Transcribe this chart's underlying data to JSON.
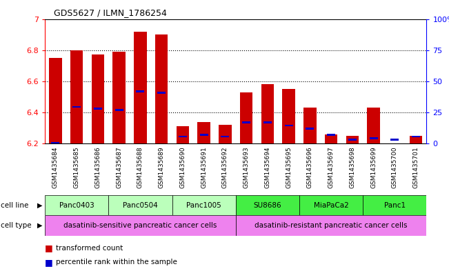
{
  "title": "GDS5627 / ILMN_1786254",
  "samples": [
    "GSM1435684",
    "GSM1435685",
    "GSM1435686",
    "GSM1435687",
    "GSM1435688",
    "GSM1435689",
    "GSM1435690",
    "GSM1435691",
    "GSM1435692",
    "GSM1435693",
    "GSM1435694",
    "GSM1435695",
    "GSM1435696",
    "GSM1435697",
    "GSM1435698",
    "GSM1435699",
    "GSM1435700",
    "GSM1435701"
  ],
  "transformed_count": [
    6.75,
    6.8,
    6.77,
    6.79,
    6.92,
    6.9,
    6.31,
    6.34,
    6.32,
    6.53,
    6.58,
    6.55,
    6.43,
    6.26,
    6.25,
    6.43,
    6.2,
    6.25
  ],
  "percentile_rank": [
    6.2,
    6.43,
    6.42,
    6.41,
    6.53,
    6.52,
    6.24,
    6.25,
    6.24,
    6.33,
    6.33,
    6.31,
    6.29,
    6.25,
    6.22,
    6.23,
    6.22,
    6.24
  ],
  "cell_lines": [
    {
      "name": "Panc0403",
      "start": 0,
      "end": 2
    },
    {
      "name": "Panc0504",
      "start": 3,
      "end": 5
    },
    {
      "name": "Panc1005",
      "start": 6,
      "end": 8
    },
    {
      "name": "SU8686",
      "start": 9,
      "end": 11
    },
    {
      "name": "MiaPaCa2",
      "start": 12,
      "end": 14
    },
    {
      "name": "Panc1",
      "start": 15,
      "end": 17
    }
  ],
  "cell_line_colors": {
    "Panc0403": "#BBFFBB",
    "Panc0504": "#BBFFBB",
    "Panc1005": "#BBFFBB",
    "SU8686": "#44EE44",
    "MiaPaCa2": "#44EE44",
    "Panc1": "#44EE44"
  },
  "cell_types": [
    {
      "name": "dasatinib-sensitive pancreatic cancer cells",
      "start": 0,
      "end": 8
    },
    {
      "name": "dasatinib-resistant pancreatic cancer cells",
      "start": 9,
      "end": 17
    }
  ],
  "ylim": [
    6.2,
    7.0
  ],
  "yticks_left": [
    6.2,
    6.4,
    6.6,
    6.8,
    7.0
  ],
  "yticks_right_pct": [
    0,
    25,
    50,
    75,
    100
  ],
  "right_ytick_labels": [
    "0",
    "25",
    "50",
    "75",
    "100%"
  ],
  "grid_lines": [
    6.4,
    6.6,
    6.8
  ],
  "bar_color": "#CC0000",
  "blue_color": "#0000CC",
  "bar_bottom": 6.2,
  "cell_type_color": "#EE82EE",
  "tick_bg_color": "#CCCCCC"
}
